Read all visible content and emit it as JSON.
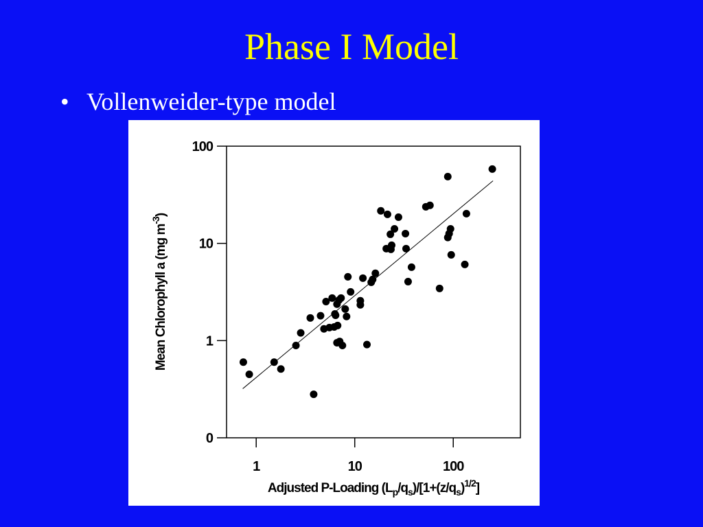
{
  "slide": {
    "title": "Phase I Model",
    "bullet": "Vollenweider-type model"
  },
  "chart_data": {
    "type": "scatter",
    "x_label": [
      {
        "text": "Adjusted P-Loading (L"
      },
      {
        "text": "p",
        "shift": "sub"
      },
      {
        "text": "/q"
      },
      {
        "text": "s",
        "shift": "sub"
      },
      {
        "text": ")/[1+(z/q"
      },
      {
        "text": "s",
        "shift": "sub"
      },
      {
        "text": ")"
      },
      {
        "text": "1/2",
        "shift": "super"
      },
      {
        "text": "]"
      }
    ],
    "y_label": [
      {
        "text": "Mean Chlorophyll a (mg m"
      },
      {
        "text": "-3",
        "shift": "super"
      },
      {
        "text": ")"
      }
    ],
    "log_x": true,
    "log_y": true,
    "xlim": [
      0.5,
      480
    ],
    "ylim": [
      0.1,
      100
    ],
    "xticks": [
      1,
      10,
      100
    ],
    "yticks": [
      {
        "value": 0.1,
        "label": "0"
      },
      1,
      10,
      100
    ],
    "color": "#000000",
    "x": [
      0.74,
      0.85,
      1.52,
      1.78,
      2.53,
      2.83,
      3.54,
      3.83,
      4.5,
      4.87,
      5.11,
      5.53,
      5.9,
      6.19,
      6.29,
      6.39,
      6.6,
      6.6,
      6.7,
      6.92,
      7.03,
      7.26,
      7.5,
      8.0,
      8.26,
      8.52,
      9.08,
      11.4,
      11.4,
      12.1,
      13.3,
      14.7,
      15.2,
      16.2,
      18.4,
      20.9,
      21.5,
      23.0,
      23.3,
      23.7,
      25.3,
      27.8,
      32.7,
      33.2,
      34.8,
      37.7,
      52.7,
      58.0,
      72.6,
      88,
      88,
      90.8,
      93.8,
      95.3,
      131,
      136,
      249
    ],
    "y": [
      0.6,
      0.45,
      0.6,
      0.51,
      0.89,
      1.2,
      1.71,
      0.28,
      1.8,
      1.32,
      2.52,
      1.36,
      2.74,
      1.38,
      1.88,
      1.82,
      2.37,
      0.95,
      1.43,
      2.61,
      0.98,
      2.74,
      0.89,
      2.11,
      1.77,
      4.53,
      3.17,
      2.33,
      2.57,
      4.39,
      0.91,
      3.98,
      4.25,
      4.92,
      21.6,
      8.83,
      19.9,
      12.4,
      8.68,
      9.57,
      14.1,
      18.6,
      12.6,
      8.83,
      4.04,
      5.69,
      23.8,
      24.6,
      3.44,
      48.6,
      11.5,
      12.6,
      14.1,
      7.62,
      6.07,
      20.2,
      58.1
    ],
    "fit_line": {
      "x": [
        0.73,
        253
      ],
      "y": [
        0.32,
        44
      ]
    }
  }
}
